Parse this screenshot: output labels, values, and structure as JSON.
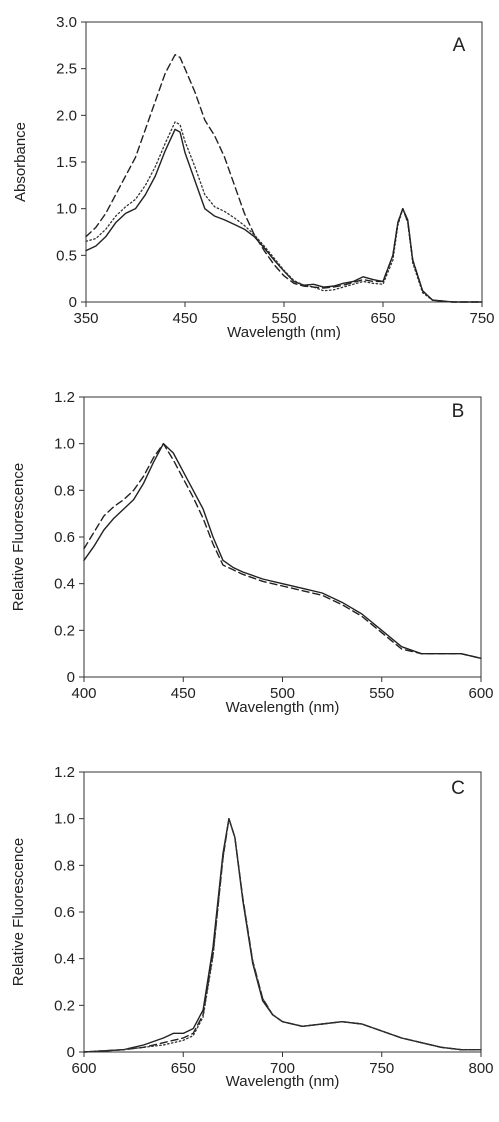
{
  "chart_data": [
    {
      "type": "line",
      "panel_label": "A",
      "xlabel": "Wavelength (nm)",
      "ylabel": "Absorbance",
      "xlim": [
        350,
        750
      ],
      "ylim": [
        0,
        3.0
      ],
      "xticks": [
        350,
        450,
        550,
        650,
        750
      ],
      "yticks": [
        0,
        0.5,
        1.0,
        1.5,
        2.0,
        2.5,
        3.0
      ],
      "xtick_labels": [
        "350",
        "450",
        "550",
        "650",
        "750"
      ],
      "ytick_labels": [
        "0",
        "0.5",
        "1.0",
        "1.5",
        "2.0",
        "2.5",
        "3.0"
      ],
      "grid": false,
      "series": [
        {
          "style": "solid",
          "color": "#222222",
          "x": [
            350,
            360,
            370,
            380,
            390,
            400,
            410,
            420,
            430,
            440,
            445,
            450,
            460,
            470,
            480,
            490,
            500,
            510,
            520,
            530,
            540,
            550,
            560,
            570,
            580,
            590,
            600,
            610,
            620,
            630,
            640,
            650,
            660,
            665,
            670,
            675,
            680,
            690,
            700,
            720,
            750
          ],
          "y": [
            0.55,
            0.6,
            0.7,
            0.85,
            0.95,
            1.0,
            1.15,
            1.35,
            1.62,
            1.85,
            1.82,
            1.6,
            1.3,
            1.0,
            0.92,
            0.88,
            0.83,
            0.78,
            0.7,
            0.58,
            0.45,
            0.33,
            0.22,
            0.18,
            0.19,
            0.16,
            0.17,
            0.2,
            0.22,
            0.27,
            0.24,
            0.22,
            0.5,
            0.85,
            1.0,
            0.88,
            0.45,
            0.12,
            0.02,
            0.0,
            0.0
          ]
        },
        {
          "style": "dotted",
          "color": "#333333",
          "x": [
            350,
            360,
            370,
            380,
            390,
            400,
            410,
            420,
            430,
            440,
            445,
            450,
            460,
            470,
            480,
            490,
            500,
            510,
            520,
            530,
            540,
            550,
            560,
            570,
            580,
            590,
            600,
            610,
            620,
            630,
            640,
            650,
            660,
            665,
            670,
            675,
            680,
            690,
            700,
            720,
            750
          ],
          "y": [
            0.65,
            0.68,
            0.78,
            0.92,
            1.02,
            1.1,
            1.25,
            1.45,
            1.7,
            1.93,
            1.9,
            1.72,
            1.45,
            1.15,
            1.02,
            0.97,
            0.9,
            0.82,
            0.72,
            0.6,
            0.47,
            0.34,
            0.23,
            0.18,
            0.16,
            0.12,
            0.13,
            0.16,
            0.19,
            0.22,
            0.2,
            0.19,
            0.45,
            0.82,
            1.0,
            0.85,
            0.42,
            0.1,
            0.02,
            0.0,
            0.0
          ]
        },
        {
          "style": "dashed",
          "color": "#222222",
          "x": [
            350,
            360,
            370,
            380,
            390,
            400,
            410,
            420,
            430,
            440,
            445,
            450,
            460,
            470,
            480,
            490,
            500,
            510,
            520,
            530,
            540,
            550,
            560,
            570,
            580,
            590,
            600,
            610,
            620,
            630,
            640,
            650,
            660,
            665,
            670,
            675,
            680,
            690,
            700,
            720,
            750
          ],
          "y": [
            0.7,
            0.8,
            0.95,
            1.15,
            1.35,
            1.55,
            1.85,
            2.15,
            2.45,
            2.65,
            2.62,
            2.5,
            2.25,
            1.95,
            1.78,
            1.55,
            1.25,
            0.95,
            0.72,
            0.55,
            0.4,
            0.28,
            0.2,
            0.17,
            0.16,
            0.15,
            0.16,
            0.18,
            0.21,
            0.24,
            0.22,
            0.22,
            0.5,
            0.85,
            1.0,
            0.86,
            0.45,
            0.12,
            0.02,
            0.0,
            0.0
          ]
        }
      ]
    },
    {
      "type": "line",
      "panel_label": "B",
      "xlabel": "Wavelength (nm)",
      "ylabel": "Relative Fluorescence",
      "xlim": [
        400,
        600
      ],
      "ylim": [
        0,
        1.2
      ],
      "xticks": [
        400,
        450,
        500,
        550,
        600
      ],
      "yticks": [
        0,
        0.2,
        0.4,
        0.6,
        0.8,
        1.0,
        1.2
      ],
      "xtick_labels": [
        "400",
        "450",
        "500",
        "550",
        "600"
      ],
      "ytick_labels": [
        "0",
        "0.2",
        "0.4",
        "0.6",
        "0.8",
        "1.0",
        "1.2"
      ],
      "grid": false,
      "series": [
        {
          "style": "solid",
          "color": "#222222",
          "x": [
            400,
            405,
            410,
            415,
            420,
            425,
            430,
            435,
            440,
            445,
            450,
            455,
            460,
            465,
            470,
            475,
            480,
            490,
            500,
            510,
            520,
            530,
            540,
            550,
            560,
            570,
            580,
            590,
            600
          ],
          "y": [
            0.5,
            0.56,
            0.63,
            0.68,
            0.72,
            0.76,
            0.83,
            0.92,
            1.0,
            0.96,
            0.88,
            0.8,
            0.72,
            0.6,
            0.5,
            0.47,
            0.45,
            0.42,
            0.4,
            0.38,
            0.36,
            0.32,
            0.27,
            0.2,
            0.13,
            0.1,
            0.1,
            0.1,
            0.08
          ]
        },
        {
          "style": "dashed",
          "color": "#222222",
          "x": [
            400,
            405,
            410,
            415,
            420,
            425,
            430,
            435,
            440,
            445,
            450,
            455,
            460,
            465,
            470,
            475,
            480,
            490,
            500,
            510,
            520,
            530,
            540,
            550,
            560,
            570,
            580,
            590,
            600
          ],
          "y": [
            0.55,
            0.62,
            0.69,
            0.73,
            0.76,
            0.8,
            0.86,
            0.94,
            1.0,
            0.93,
            0.85,
            0.77,
            0.68,
            0.57,
            0.48,
            0.46,
            0.44,
            0.41,
            0.39,
            0.37,
            0.35,
            0.31,
            0.26,
            0.19,
            0.12,
            0.1,
            0.1,
            0.1,
            0.08
          ]
        }
      ]
    },
    {
      "type": "line",
      "panel_label": "C",
      "xlabel": "Wavelength (nm)",
      "ylabel": "Relative Fluorescence",
      "xlim": [
        600,
        800
      ],
      "ylim": [
        0,
        1.2
      ],
      "xticks": [
        600,
        650,
        700,
        750,
        800
      ],
      "yticks": [
        0,
        0.2,
        0.4,
        0.6,
        0.8,
        1.0,
        1.2
      ],
      "xtick_labels": [
        "600",
        "650",
        "700",
        "750",
        "800"
      ],
      "ytick_labels": [
        "0",
        "0.2",
        "0.4",
        "0.6",
        "0.8",
        "1.0",
        "1.2"
      ],
      "grid": false,
      "series": [
        {
          "style": "solid",
          "color": "#222222",
          "x": [
            600,
            620,
            630,
            640,
            645,
            650,
            655,
            660,
            665,
            670,
            673,
            676,
            680,
            685,
            690,
            695,
            700,
            710,
            720,
            730,
            740,
            750,
            760,
            770,
            780,
            790,
            800
          ],
          "y": [
            0.0,
            0.01,
            0.03,
            0.06,
            0.08,
            0.08,
            0.1,
            0.18,
            0.45,
            0.85,
            1.0,
            0.92,
            0.65,
            0.38,
            0.22,
            0.16,
            0.13,
            0.11,
            0.12,
            0.13,
            0.12,
            0.09,
            0.06,
            0.04,
            0.02,
            0.01,
            0.01
          ]
        },
        {
          "style": "dashed",
          "color": "#222222",
          "x": [
            600,
            620,
            630,
            640,
            645,
            650,
            655,
            660,
            665,
            670,
            673,
            676,
            680,
            685,
            690,
            695,
            700,
            710,
            720,
            730,
            740,
            750,
            760,
            770,
            780,
            790,
            800
          ],
          "y": [
            0.0,
            0.01,
            0.02,
            0.04,
            0.05,
            0.06,
            0.08,
            0.16,
            0.42,
            0.83,
            1.0,
            0.92,
            0.66,
            0.39,
            0.23,
            0.16,
            0.13,
            0.11,
            0.12,
            0.13,
            0.12,
            0.09,
            0.06,
            0.04,
            0.02,
            0.01,
            0.01
          ]
        },
        {
          "style": "dotted",
          "color": "#333333",
          "x": [
            600,
            620,
            630,
            640,
            645,
            650,
            655,
            660,
            665,
            670,
            673,
            676,
            680,
            685,
            690,
            695,
            700,
            710,
            720,
            730,
            740,
            750,
            760,
            770,
            780,
            790,
            800
          ],
          "y": [
            0.0,
            0.01,
            0.02,
            0.03,
            0.04,
            0.05,
            0.07,
            0.15,
            0.41,
            0.83,
            1.0,
            0.92,
            0.66,
            0.39,
            0.23,
            0.16,
            0.13,
            0.11,
            0.12,
            0.13,
            0.12,
            0.09,
            0.06,
            0.04,
            0.02,
            0.01,
            0.01
          ]
        }
      ]
    }
  ]
}
